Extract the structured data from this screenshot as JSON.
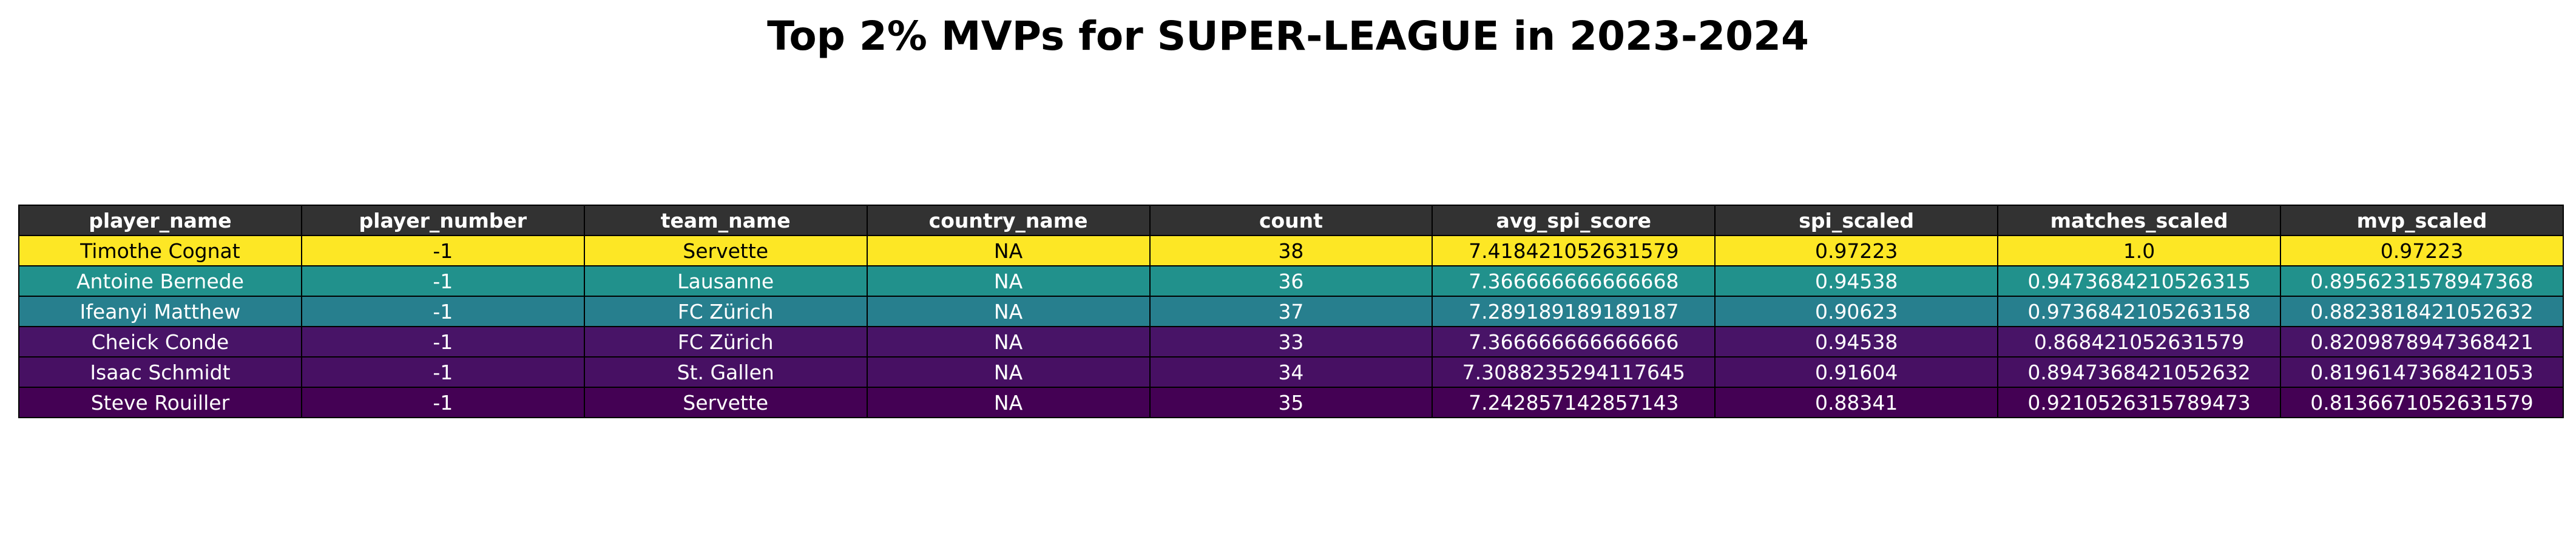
{
  "chart_data": {
    "type": "table",
    "title": "Top 2% MVPs for SUPER-LEAGUE in 2023-2024",
    "columns": [
      "player_name",
      "player_number",
      "team_name",
      "country_name",
      "count",
      "avg_spi_score",
      "spi_scaled",
      "matches_scaled",
      "mvp_scaled"
    ],
    "rows": [
      {
        "cells": [
          "Timothe Cognat",
          "-1",
          "Servette",
          "NA",
          "38",
          "7.418421052631579",
          "0.97223",
          "1.0",
          "0.97223"
        ],
        "color": "#fde725",
        "text_color": "#000000"
      },
      {
        "cells": [
          "Antoine Bernede",
          "-1",
          "Lausanne",
          "NA",
          "36",
          "7.366666666666668",
          "0.94538",
          "0.9473684210526315",
          "0.8956231578947368"
        ],
        "color": "#21918c",
        "text_color": "#ffffff"
      },
      {
        "cells": [
          "Ifeanyi Matthew",
          "-1",
          "FC Zürich",
          "NA",
          "37",
          "7.289189189189187",
          "0.90623",
          "0.9736842105263158",
          "0.8823818421052632"
        ],
        "color": "#277f8e",
        "text_color": "#ffffff"
      },
      {
        "cells": [
          "Cheick Conde",
          "-1",
          "FC Zürich",
          "NA",
          "33",
          "7.366666666666666",
          "0.94538",
          "0.868421052631579",
          "0.8209878947368421"
        ],
        "color": "#481467",
        "text_color": "#ffffff"
      },
      {
        "cells": [
          "Isaac Schmidt",
          "-1",
          "St. Gallen",
          "NA",
          "34",
          "7.3088235294117645",
          "0.91604",
          "0.8947368421052632",
          "0.8196147368421053"
        ],
        "color": "#471063",
        "text_color": "#ffffff"
      },
      {
        "cells": [
          "Steve Rouiller",
          "-1",
          "Servette",
          "NA",
          "35",
          "7.242857142857143",
          "0.88341",
          "0.9210526315789473",
          "0.8136671052631579"
        ],
        "color": "#440154",
        "text_color": "#ffffff"
      }
    ],
    "header_color": "#323232",
    "header_text_color": "#ffffff"
  }
}
